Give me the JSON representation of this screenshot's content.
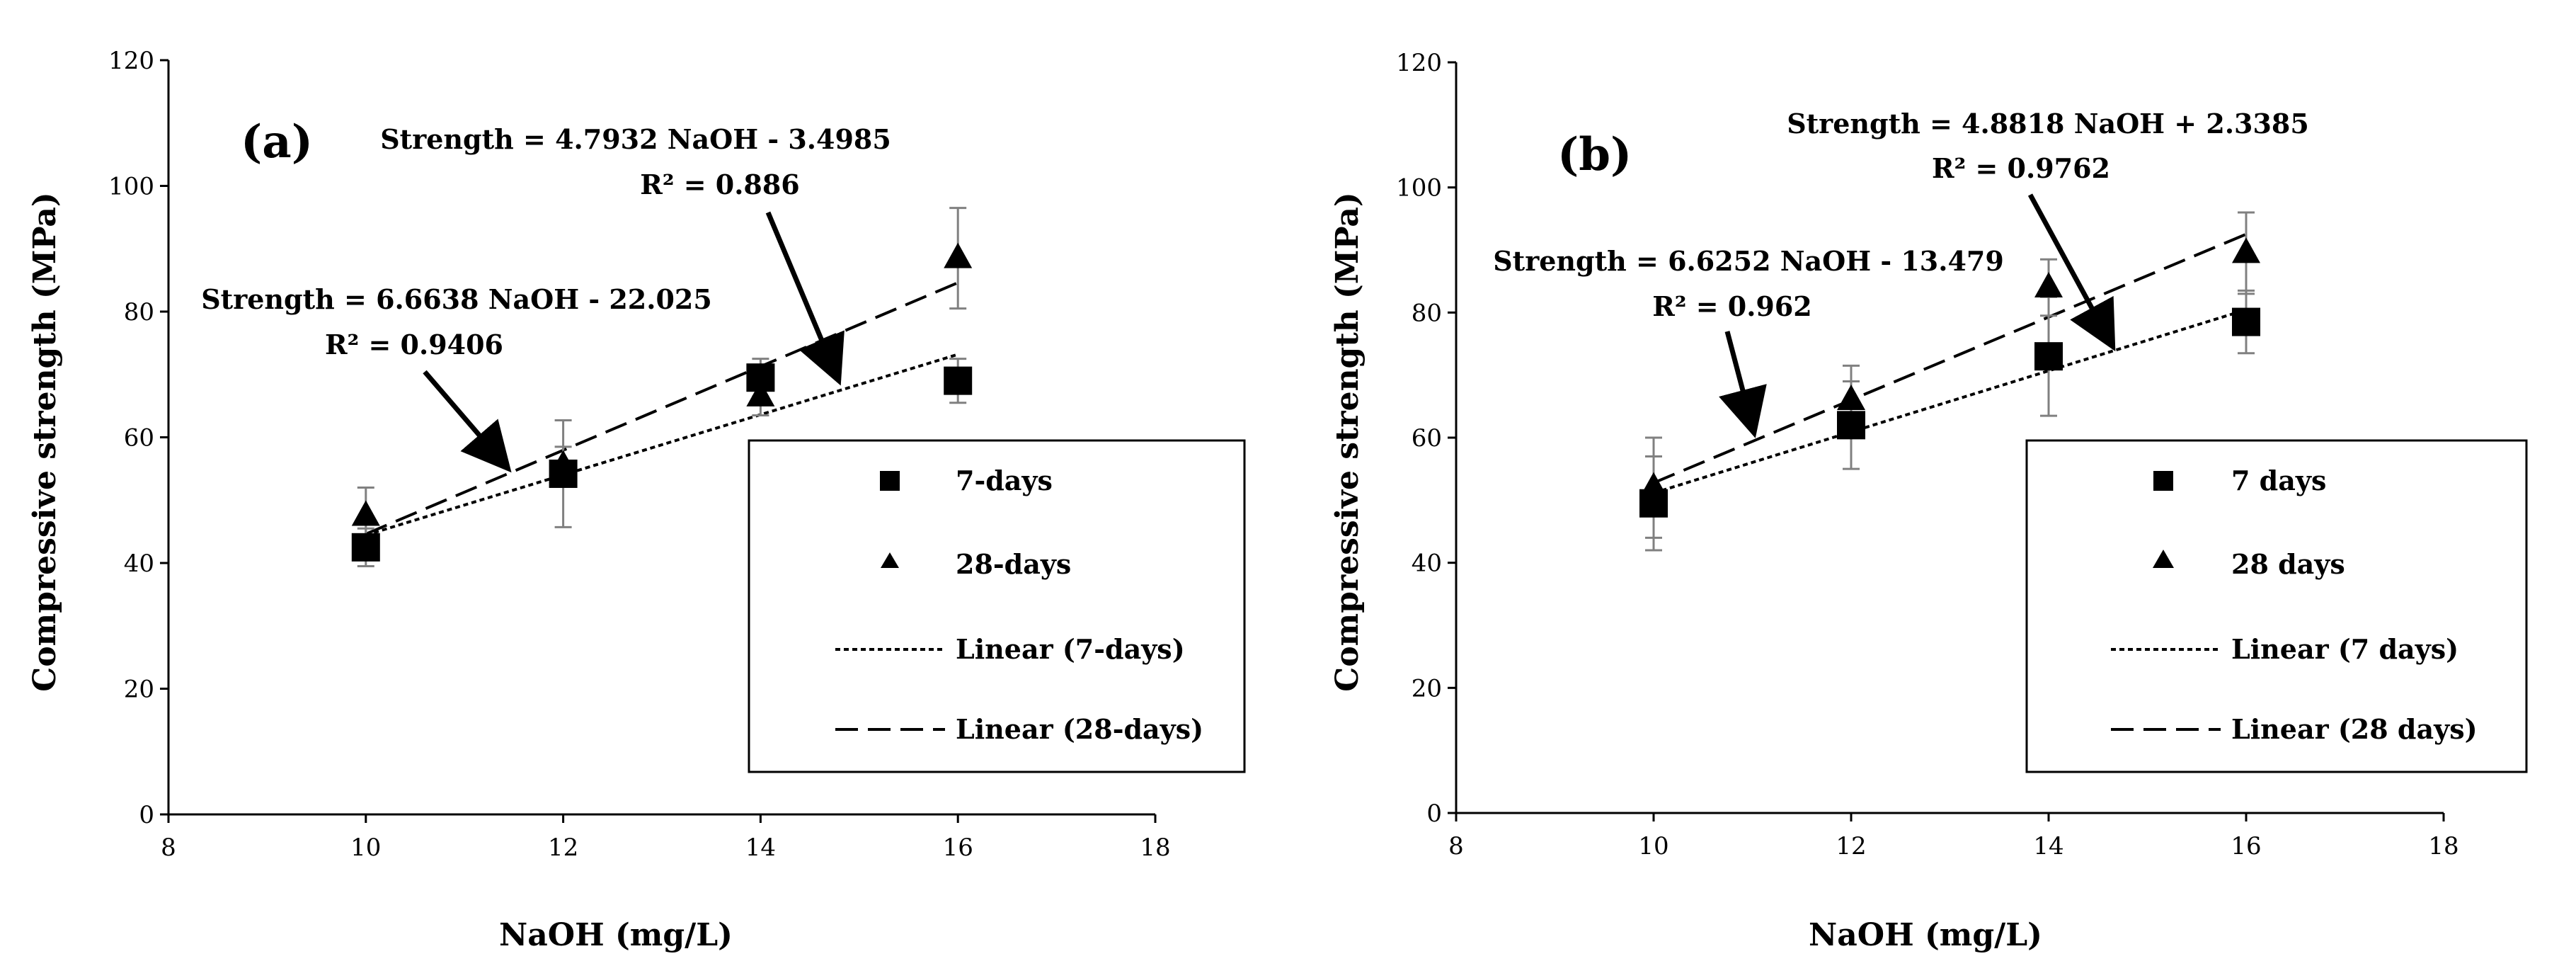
{
  "chart_data": [
    {
      "type": "scatter",
      "panel_label": "(a)",
      "xlabel": "NaOH (mg/L)",
      "ylabel": "Compressive strength (MPa)",
      "xlim": [
        8,
        18
      ],
      "ylim": [
        0,
        120
      ],
      "xticks": [
        8,
        10,
        12,
        14,
        16,
        18
      ],
      "yticks": [
        0,
        20,
        40,
        60,
        80,
        100,
        120
      ],
      "grid": false,
      "legend_position": "bottom-right",
      "series": [
        {
          "name": "7-days",
          "marker": "square",
          "x": [
            10,
            12,
            14,
            16
          ],
          "y": [
            42.5,
            54.2,
            69.5,
            69.0
          ],
          "error": [
            3,
            8.5,
            3,
            3.5
          ]
        },
        {
          "name": "28-days",
          "marker": "triangle",
          "x": [
            10,
            12,
            14,
            16
          ],
          "y": [
            47.5,
            55.5,
            66.5,
            88.5
          ],
          "error": [
            4.5,
            3,
            3,
            8
          ]
        }
      ],
      "trendlines": [
        {
          "name": "Linear (7-days)",
          "style": "dotted",
          "slope": 4.7932,
          "intercept": -3.4985,
          "x_range": [
            10,
            16
          ]
        },
        {
          "name": "Linear (28-days)",
          "style": "dashed",
          "slope": 6.6638,
          "intercept": -22.025,
          "x_range": [
            10,
            16
          ]
        }
      ],
      "legend": [
        "7-days",
        "28-days",
        "Linear (7-days)",
        "Linear (28-days)"
      ],
      "annotations": [
        {
          "equation": "Strength = 4.7932 NaOH - 3.4985",
          "r2": "R² = 0.886"
        },
        {
          "equation": "Strength = 6.6638 NaOH - 22.025",
          "r2": "R² = 0.9406"
        }
      ]
    },
    {
      "type": "scatter",
      "panel_label": "(b)",
      "xlabel": "NaOH (mg/L)",
      "ylabel": "Compressive strength (MPa)",
      "xlim": [
        8,
        18
      ],
      "ylim": [
        0,
        120
      ],
      "xticks": [
        8,
        10,
        12,
        14,
        16,
        18
      ],
      "yticks": [
        0,
        20,
        40,
        60,
        80,
        100,
        120
      ],
      "grid": false,
      "legend_position": "bottom-right",
      "series": [
        {
          "name": "7 days",
          "marker": "square",
          "x": [
            10,
            12,
            14,
            16
          ],
          "y": [
            49.5,
            62.0,
            73.0,
            78.5
          ],
          "error": [
            7.5,
            7,
            9.5,
            5
          ]
        },
        {
          "name": "28 days",
          "marker": "triangle",
          "x": [
            10,
            12,
            14,
            16
          ],
          "y": [
            52.0,
            66.0,
            84.0,
            89.5
          ],
          "error": [
            8,
            5.5,
            4.5,
            6.5
          ]
        }
      ],
      "trendlines": [
        {
          "name": "Linear (7 days)",
          "style": "dotted",
          "slope": 4.8818,
          "intercept": 2.3385,
          "x_range": [
            10,
            16
          ]
        },
        {
          "name": "Linear (28 days)",
          "style": "dashed",
          "slope": 6.6252,
          "intercept": -13.479,
          "x_range": [
            10,
            16
          ]
        }
      ],
      "legend": [
        "7 days",
        "28 days",
        "Linear (7 days)",
        "Linear (28 days)"
      ],
      "annotations": [
        {
          "equation": "Strength = 4.8818 NaOH + 2.3385",
          "r2": "R² = 0.9762"
        },
        {
          "equation": "Strength = 6.6252 NaOH - 13.479",
          "r2": "R² = 0.962"
        }
      ]
    }
  ]
}
